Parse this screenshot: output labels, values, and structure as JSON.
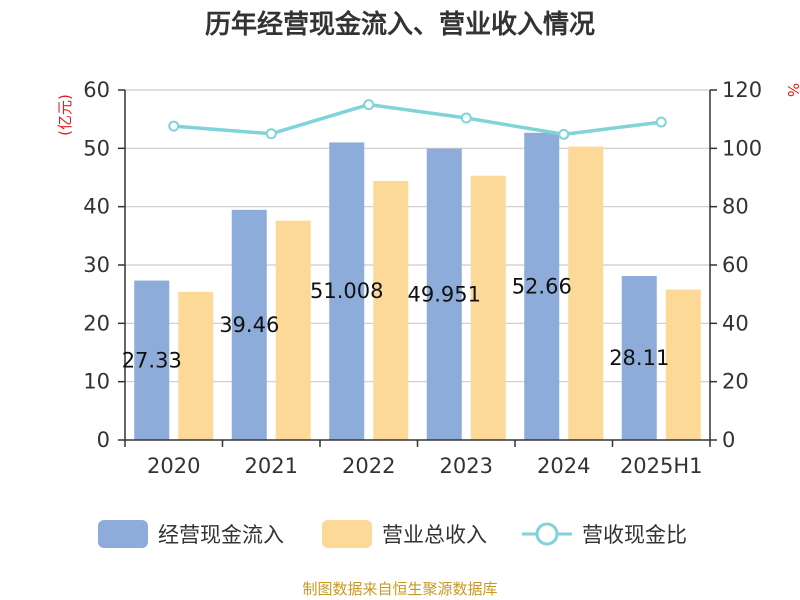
{
  "colors": {
    "cash_inflow": "#8eacda",
    "revenue": "#fdd998",
    "ratio": "#7fd3d9",
    "unit_label": "#e02020",
    "source_text": "#c89a22",
    "grid": "#cccccc",
    "axis": "#333333"
  },
  "chart_data": {
    "type": "bar",
    "title": "历年经营现金流入、营业收入情况",
    "categories": [
      "2020",
      "2021",
      "2022",
      "2023",
      "2024",
      "2025H1"
    ],
    "series": [
      {
        "name": "经营现金流入",
        "type": "bar",
        "axis": "left",
        "values": [
          27.33,
          39.46,
          51.01,
          49.95,
          52.66,
          28.11
        ],
        "labels": [
          "27.33",
          "39.46",
          "51.008",
          "49.951",
          "52.66",
          "28.11"
        ]
      },
      {
        "name": "营业总收入",
        "type": "bar",
        "axis": "left",
        "values": [
          25.4,
          37.6,
          44.4,
          45.3,
          50.3,
          25.8
        ]
      },
      {
        "name": "营收现金比",
        "type": "line",
        "axis": "right",
        "values": [
          107.6,
          105,
          115,
          110.4,
          104.8,
          109
        ]
      }
    ],
    "left_axis": {
      "unit": "(亿元)",
      "range": [
        0,
        60
      ],
      "ticks": [
        "0",
        "10",
        "20",
        "30",
        "40",
        "50",
        "60"
      ]
    },
    "right_axis": {
      "unit": "%",
      "range": [
        0,
        120
      ],
      "ticks": [
        "0",
        "20",
        "40",
        "60",
        "80",
        "100",
        "120"
      ]
    },
    "grid": true,
    "legend_position": "bottom"
  },
  "source": "制图数据来自恒生聚源数据库"
}
